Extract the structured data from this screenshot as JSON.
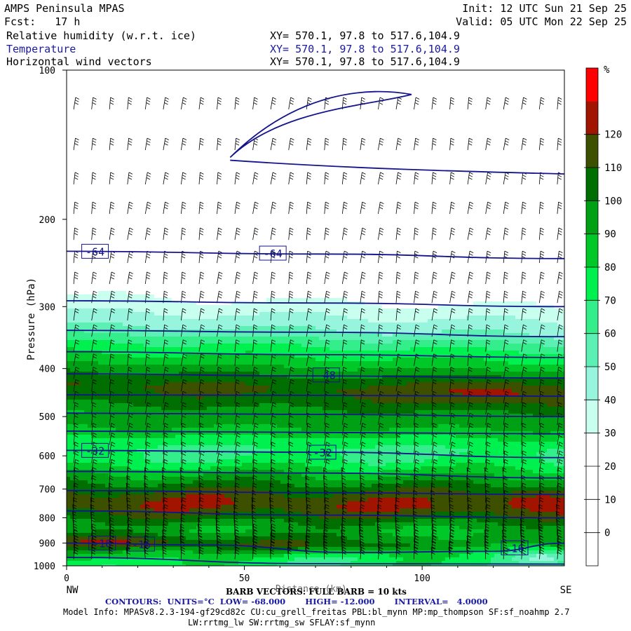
{
  "header": {
    "model": "AMPS Peninsula MPAS",
    "init": "Init: 12 UTC Sun 21 Sep 25",
    "fcst": "Fcst:   17 h",
    "valid": "Valid: 05 UTC Mon 22 Sep 25",
    "fields": [
      {
        "name": "Relative humidity (w.r.t. ice)",
        "xy": "XY= 570.1, 97.8 to 517.6,104.9",
        "color": "#000000"
      },
      {
        "name": "Temperature",
        "xy": "XY= 570.1, 97.8 to 517.6,104.9",
        "color": "#1a1aa0"
      },
      {
        "name": "Horizontal wind vectors",
        "xy": "XY= 570.1, 97.8 to 517.6,104.9",
        "color": "#000000"
      }
    ]
  },
  "footer": {
    "barb": "BARB VECTORS: FULL BARB = 10 kts",
    "xlabel_overlap": "Distance (km)",
    "contours": "CONTOURS:  UNITS=°C  LOW= -68.000       HIGH= -12.000       INTERVAL=   4.0000",
    "model_info": "Model Info: MPASv8.2.3-194-gf29cd82c CU:cu_grell_freitas PBL:bl_mynn MP:mp_thompson SF:sf_noahmp 2.7",
    "model_info2": "LW:rrtmg_lw SW:rrtmg_sw SFLAY:sf_mynn"
  },
  "colors": {
    "temp_contour": "#14148c",
    "barb": "#000000"
  },
  "chart_data": {
    "type": "heatmap",
    "title": "Relative humidity (w.r.t. ice)",
    "ylabel": "Pressure (hPa)",
    "xlabel": "Distance (km)",
    "x_left_label": "NW",
    "x_right_label": "SE",
    "xlim": [
      0,
      140
    ],
    "x_ticks": [
      0,
      50,
      100
    ],
    "ylim": [
      1000,
      100
    ],
    "y_scale": "log",
    "y_ticks": [
      100,
      200,
      300,
      400,
      500,
      600,
      700,
      800,
      900,
      1000
    ],
    "colorbar": {
      "unit": "%",
      "levels": [
        -10,
        0,
        10,
        20,
        30,
        40,
        50,
        60,
        70,
        80,
        90,
        100,
        110,
        120,
        130
      ],
      "labels": [
        "0",
        "10",
        "20",
        "30",
        "40",
        "50",
        "60",
        "70",
        "80",
        "90",
        "100",
        "110",
        "120"
      ],
      "colors": [
        "#ffffff",
        "#ffffff",
        "#ffffff",
        "#ffffff",
        "#c8ffee",
        "#96f5dc",
        "#5cf0b4",
        "#34ee8c",
        "#00f050",
        "#00c828",
        "#00a014",
        "#006e00",
        "#3c5000",
        "#a01400",
        "#ff0000"
      ]
    },
    "rh_profile": [
      {
        "p": 100,
        "rh": 0
      },
      {
        "p": 250,
        "rh": 5
      },
      {
        "p": 275,
        "rh": 25
      },
      {
        "p": 290,
        "rh": 32
      },
      {
        "p": 310,
        "rh": 42
      },
      {
        "p": 330,
        "rh": 52
      },
      {
        "p": 345,
        "rh": 65
      },
      {
        "p": 360,
        "rh": 75
      },
      {
        "p": 380,
        "rh": 85
      },
      {
        "p": 395,
        "rh": 95
      },
      {
        "p": 410,
        "rh": 103
      },
      {
        "p": 430,
        "rh": 112
      },
      {
        "p": 450,
        "rh": 108
      },
      {
        "p": 470,
        "rh": 100
      },
      {
        "p": 490,
        "rh": 92
      },
      {
        "p": 510,
        "rh": 95
      },
      {
        "p": 530,
        "rh": 88
      },
      {
        "p": 550,
        "rh": 78
      },
      {
        "p": 580,
        "rh": 68
      },
      {
        "p": 610,
        "rh": 72
      },
      {
        "p": 640,
        "rh": 85
      },
      {
        "p": 665,
        "rh": 95
      },
      {
        "p": 690,
        "rh": 105
      },
      {
        "p": 720,
        "rh": 115
      },
      {
        "p": 750,
        "rh": 120
      },
      {
        "p": 780,
        "rh": 112
      },
      {
        "p": 810,
        "rh": 100
      },
      {
        "p": 840,
        "rh": 92
      },
      {
        "p": 870,
        "rh": 100
      },
      {
        "p": 900,
        "rh": 110
      },
      {
        "p": 930,
        "rh": 96
      },
      {
        "p": 960,
        "rh": 84
      },
      {
        "p": 1000,
        "rh": 76
      }
    ],
    "rh_blobs": [
      {
        "x": 120,
        "p": 440,
        "rx": 18,
        "rp": 25,
        "amp": 15
      },
      {
        "x": 130,
        "p": 730,
        "rx": 12,
        "rp": 30,
        "amp": 12
      },
      {
        "x": 18,
        "p": 895,
        "rx": 18,
        "rp": 25,
        "amp": 12
      },
      {
        "x": 118,
        "p": 920,
        "rx": 18,
        "rp": 55,
        "amp": -25
      },
      {
        "x": 70,
        "p": 960,
        "rx": 30,
        "rp": 40,
        "amp": -12
      },
      {
        "x": 135,
        "p": 960,
        "rx": 10,
        "rp": 40,
        "amp": -30
      }
    ],
    "temperature_contours": [
      {
        "value": -64,
        "points": [
          [
            0,
            232
          ],
          [
            70,
            235
          ],
          [
            140,
            240
          ]
        ]
      },
      {
        "value": -60,
        "points": [
          [
            0,
            292
          ],
          [
            70,
            295
          ],
          [
            140,
            300
          ]
        ]
      },
      {
        "value": -56,
        "points": [
          [
            0,
            335
          ],
          [
            70,
            338
          ],
          [
            140,
            345
          ]
        ]
      },
      {
        "value": -52,
        "points": [
          [
            0,
            370
          ],
          [
            70,
            375
          ],
          [
            140,
            380
          ]
        ]
      },
      {
        "value": -48,
        "points": [
          [
            0,
            410
          ],
          [
            70,
            414
          ],
          [
            140,
            418
          ]
        ]
      },
      {
        "value": -44,
        "points": [
          [
            0,
            452
          ],
          [
            70,
            453
          ],
          [
            140,
            455
          ]
        ]
      },
      {
        "value": -40,
        "points": [
          [
            0,
            492
          ],
          [
            70,
            495
          ],
          [
            140,
            500
          ]
        ]
      },
      {
        "value": -36,
        "points": [
          [
            0,
            535
          ],
          [
            70,
            538
          ],
          [
            140,
            542
          ]
        ]
      },
      {
        "value": -32,
        "points": [
          [
            0,
            585
          ],
          [
            70,
            590
          ],
          [
            140,
            605
          ]
        ]
      },
      {
        "value": -28,
        "points": [
          [
            0,
            645
          ],
          [
            70,
            650
          ],
          [
            140,
            665
          ]
        ]
      },
      {
        "value": -24,
        "points": [
          [
            0,
            705
          ],
          [
            70,
            712
          ],
          [
            140,
            718
          ]
        ]
      },
      {
        "value": -20,
        "points": [
          [
            0,
            775
          ],
          [
            70,
            790
          ],
          [
            140,
            800
          ]
        ]
      },
      {
        "value": -16,
        "points": [
          [
            0,
            900
          ],
          [
            40,
            908
          ],
          [
            80,
            940
          ],
          [
            120,
            935
          ],
          [
            140,
            900
          ]
        ]
      },
      {
        "value": -12,
        "points": [
          [
            0,
            962
          ],
          [
            70,
            990
          ],
          [
            140,
            992
          ]
        ]
      }
    ],
    "contour_labels": [
      {
        "text": "-64",
        "x": 8,
        "p": 232
      },
      {
        "text": "-64",
        "x": 58,
        "p": 234
      },
      {
        "text": "-48",
        "x": 73,
        "p": 412
      },
      {
        "text": "-32",
        "x": 8,
        "p": 585
      },
      {
        "text": "-32",
        "x": 72,
        "p": 590
      },
      {
        "text": "-16",
        "x": 10,
        "p": 900
      },
      {
        "text": "-16",
        "x": 21,
        "p": 904
      },
      {
        "text": "-16",
        "x": 126,
        "p": 920
      }
    ]
  }
}
